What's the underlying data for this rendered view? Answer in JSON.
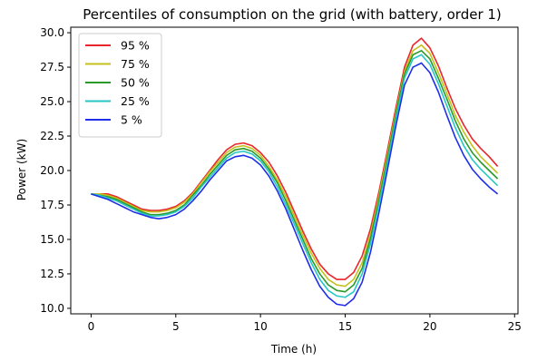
{
  "chart_data": {
    "type": "line",
    "title": "Percentiles of consumption on the grid (with battery, order 1)",
    "xlabel": "Time (h)",
    "ylabel": "Power (kW)",
    "xlim": [
      -1.2,
      25.2
    ],
    "ylim": [
      9.6,
      30.4
    ],
    "xticks": [
      0,
      5,
      10,
      15,
      20,
      25
    ],
    "xtick_labels": [
      "0",
      "5",
      "10",
      "15",
      "20",
      "25"
    ],
    "yticks": [
      10.0,
      12.5,
      15.0,
      17.5,
      20.0,
      22.5,
      25.0,
      27.5,
      30.0
    ],
    "ytick_labels": [
      "10.0",
      "12.5",
      "15.0",
      "17.5",
      "20.0",
      "22.5",
      "25.0",
      "27.5",
      "30.0"
    ],
    "grid": false,
    "legend_position": "top-left",
    "x": [
      0,
      0.5,
      1,
      1.5,
      2,
      2.5,
      3,
      3.5,
      4,
      4.5,
      5,
      5.5,
      6,
      6.5,
      7,
      7.5,
      8,
      8.5,
      9,
      9.5,
      10,
      10.5,
      11,
      11.5,
      12,
      12.5,
      13,
      13.5,
      14,
      14.5,
      15,
      15.5,
      16,
      16.5,
      17,
      17.5,
      18,
      18.5,
      19,
      19.5,
      20,
      20.5,
      21,
      21.5,
      22,
      22.5,
      23,
      23.5,
      24
    ],
    "series": [
      {
        "name": "95 %",
        "color": "#e8262b",
        "values": [
          18.3,
          18.3,
          18.3,
          18.1,
          17.8,
          17.5,
          17.2,
          17.1,
          17.1,
          17.2,
          17.4,
          17.8,
          18.4,
          19.2,
          20.0,
          20.8,
          21.5,
          21.9,
          22.0,
          21.8,
          21.3,
          20.6,
          19.6,
          18.4,
          17.0,
          15.6,
          14.3,
          13.2,
          12.5,
          12.1,
          12.1,
          12.6,
          13.8,
          15.8,
          18.5,
          21.5,
          24.6,
          27.5,
          29.1,
          29.6,
          28.9,
          27.6,
          26.0,
          24.5,
          23.3,
          22.3,
          21.6,
          21.0,
          20.3
        ]
      },
      {
        "name": "75 %",
        "color": "#c5c01d",
        "values": [
          18.3,
          18.3,
          18.2,
          18.0,
          17.7,
          17.4,
          17.1,
          17.0,
          17.0,
          17.1,
          17.3,
          17.7,
          18.3,
          19.1,
          19.9,
          20.6,
          21.3,
          21.7,
          21.8,
          21.6,
          21.1,
          20.3,
          19.3,
          18.1,
          16.7,
          15.3,
          14.0,
          12.9,
          12.1,
          11.7,
          11.6,
          12.1,
          13.3,
          15.4,
          18.2,
          21.2,
          24.3,
          27.2,
          28.7,
          29.1,
          28.5,
          27.1,
          25.6,
          24.0,
          22.8,
          21.8,
          21.0,
          20.4,
          19.8
        ]
      },
      {
        "name": "50 %",
        "color": "#2a9a2a",
        "values": [
          18.3,
          18.2,
          18.1,
          17.9,
          17.6,
          17.3,
          17.0,
          16.8,
          16.8,
          16.9,
          17.1,
          17.5,
          18.2,
          18.9,
          19.7,
          20.4,
          21.1,
          21.5,
          21.6,
          21.4,
          20.9,
          20.1,
          19.1,
          17.8,
          16.4,
          15.0,
          13.6,
          12.5,
          11.7,
          11.3,
          11.2,
          11.7,
          12.9,
          15.1,
          17.9,
          20.9,
          24.1,
          27.0,
          28.4,
          28.7,
          28.1,
          26.7,
          25.2,
          23.6,
          22.3,
          21.3,
          20.6,
          20.0,
          19.4
        ]
      },
      {
        "name": "25 %",
        "color": "#26c6c6",
        "values": [
          18.3,
          18.2,
          18.0,
          17.8,
          17.5,
          17.2,
          16.9,
          16.7,
          16.7,
          16.8,
          17.0,
          17.4,
          18.0,
          18.8,
          19.5,
          20.2,
          20.9,
          21.3,
          21.4,
          21.2,
          20.7,
          19.9,
          18.8,
          17.5,
          16.1,
          14.7,
          13.3,
          12.1,
          11.3,
          10.9,
          10.8,
          11.2,
          12.5,
          14.7,
          17.6,
          20.6,
          23.8,
          26.7,
          28.1,
          28.4,
          27.7,
          26.3,
          24.7,
          23.1,
          21.8,
          20.8,
          20.1,
          19.5,
          18.9
        ]
      },
      {
        "name": "5 %",
        "color": "#1f2ee8",
        "values": [
          18.3,
          18.1,
          17.9,
          17.6,
          17.3,
          17.0,
          16.8,
          16.6,
          16.5,
          16.6,
          16.8,
          17.2,
          17.8,
          18.5,
          19.3,
          20.0,
          20.7,
          21.0,
          21.1,
          20.9,
          20.4,
          19.6,
          18.5,
          17.2,
          15.7,
          14.2,
          12.8,
          11.6,
          10.8,
          10.3,
          10.2,
          10.7,
          11.9,
          14.1,
          17.0,
          20.1,
          23.3,
          26.2,
          27.5,
          27.8,
          27.1,
          25.7,
          24.0,
          22.4,
          21.1,
          20.1,
          19.4,
          18.8,
          18.3
        ]
      }
    ]
  }
}
